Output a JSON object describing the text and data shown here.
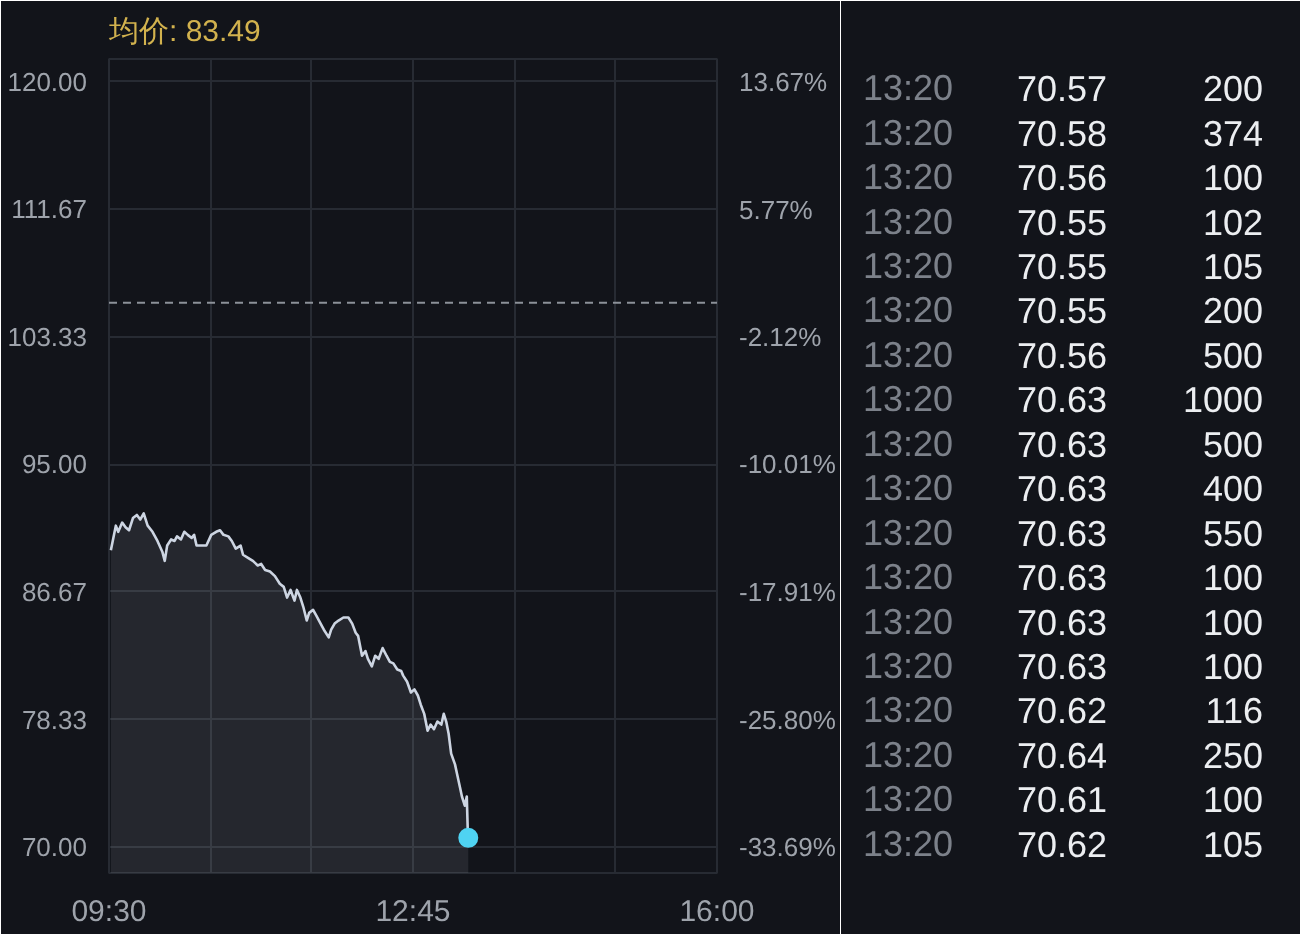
{
  "chart_data": [
    {
      "type": "area",
      "title": "均价: 83.49",
      "xlim": [
        9.5,
        16
      ],
      "xticks": [
        {
          "value": 9.5,
          "label": "09:30"
        },
        {
          "value": 10.5833,
          "label": null
        },
        {
          "value": 11.6667,
          "label": null
        },
        {
          "value": 12.75,
          "label": "12:45"
        },
        {
          "value": 13.8333,
          "label": null
        },
        {
          "value": 14.9167,
          "label": null
        },
        {
          "value": 16,
          "label": "16:00"
        }
      ],
      "ylim": [
        68.3,
        121.5
      ],
      "yticks": [
        {
          "value": 70,
          "label": "70.00"
        },
        78.33,
        86.67,
        {
          "value": 95,
          "label": "95.00"
        },
        103.33,
        111.67,
        {
          "value": 120,
          "label": "120.00"
        }
      ],
      "y2lim": [
        -35.3,
        15.09
      ],
      "y2ticks": [
        {
          "value": -33.69,
          "label": "-33.69%"
        },
        {
          "value": -25.8,
          "label": "-25.80%"
        },
        {
          "value": -17.91,
          "label": "-17.91%"
        },
        {
          "value": -10.01,
          "label": "-10.01%"
        },
        {
          "value": -2.12,
          "label": "-2.12%"
        },
        {
          "value": 5.77,
          "label": "5.77%"
        },
        {
          "value": 13.67,
          "label": "13.67%"
        }
      ],
      "grid": true,
      "ref_lines": [
        {
          "axis": "y",
          "value": 105.57,
          "color": "#8c9199",
          "line_style": "dashed"
        }
      ],
      "series": [
        {
          "type": "area",
          "color": "#cdd5e2",
          "x": [
            9.52,
            9.573,
            9.599,
            9.641,
            9.677,
            9.714,
            9.756,
            9.798,
            9.834,
            9.871,
            9.913,
            9.965,
            10.018,
            10.07,
            10.096,
            10.122,
            10.164,
            10.201,
            10.227,
            10.269,
            10.305,
            10.342,
            10.384,
            10.41,
            10.436,
            10.489,
            10.541,
            10.593,
            10.646,
            10.687,
            10.724,
            10.776,
            10.813,
            10.855,
            10.907,
            10.933,
            10.986,
            11.038,
            11.09,
            11.127,
            11.169,
            11.221,
            11.274,
            11.326,
            11.368,
            11.404,
            11.441,
            11.483,
            11.509,
            11.546,
            11.577,
            11.614,
            11.64,
            11.682,
            11.718,
            11.745,
            11.797,
            11.849,
            11.875,
            11.912,
            11.954,
            12.006,
            12.059,
            12.1,
            12.137,
            12.163,
            12.205,
            12.242,
            12.268,
            12.31,
            12.346,
            12.383,
            12.425,
            12.467,
            12.503,
            12.54,
            12.582,
            12.624,
            12.645,
            12.687,
            12.728,
            12.765,
            12.802,
            12.833,
            12.87,
            12.906,
            12.938,
            12.974,
            13.011,
            13.053,
            13.079,
            13.105,
            13.131,
            13.158,
            13.199,
            13.22,
            13.252,
            13.273,
            13.304,
            13.325,
            13.335,
            13.341
          ],
          "values": [
            89.4,
            91.0,
            90.6,
            91.2,
            90.9,
            90.7,
            91.5,
            91.7,
            91.4,
            91.8,
            91.0,
            90.6,
            90.0,
            89.3,
            88.7,
            89.7,
            90.1,
            90.0,
            90.3,
            90.1,
            90.6,
            90.4,
            90.2,
            90.4,
            89.7,
            89.7,
            89.7,
            90.4,
            90.6,
            90.7,
            90.4,
            90.3,
            90.0,
            89.5,
            89.7,
            89.1,
            88.9,
            88.7,
            88.4,
            88.5,
            88.1,
            88.0,
            87.7,
            87.2,
            87.0,
            86.3,
            86.8,
            86.1,
            86.8,
            86.3,
            85.7,
            84.8,
            85.3,
            85.5,
            85.1,
            84.8,
            84.2,
            83.7,
            84.2,
            84.6,
            84.8,
            85.0,
            85.0,
            84.6,
            84.0,
            83.8,
            82.5,
            82.8,
            82.3,
            81.8,
            82.5,
            82.3,
            83.0,
            82.5,
            82.1,
            82.0,
            81.6,
            81.5,
            81.2,
            80.8,
            80.1,
            80.3,
            79.9,
            79.3,
            78.7,
            77.6,
            78.0,
            77.7,
            78.2,
            78.0,
            78.7,
            78.2,
            77.4,
            76.1,
            75.4,
            74.8,
            73.9,
            73.3,
            72.7,
            73.3,
            71.2,
            70.6
          ]
        },
        {
          "type": "scatter",
          "marker": "circle",
          "color": "#4fd3f2",
          "x": [
            13.341
          ],
          "values": [
            70.6
          ]
        }
      ]
    },
    {
      "type": "other",
      "annotations": [
        "13:20",
        "70.57",
        "200",
        "13:20",
        "70.58",
        "374",
        "13:20",
        "70.56",
        "100",
        "13:20",
        "70.55",
        "102",
        "13:20",
        "70.55",
        "105",
        "13:20",
        "70.55",
        "200",
        "13:20",
        "70.56",
        "500",
        "13:20",
        "70.63",
        "1000",
        "13:20",
        "70.63",
        "500",
        "13:20",
        "70.63",
        "400",
        "13:20",
        "70.63",
        "550",
        "13:20",
        "70.63",
        "100",
        "13:20",
        "70.63",
        "100",
        "13:20",
        "70.63",
        "100",
        "13:20",
        "70.62",
        "116",
        "13:20",
        "70.64",
        "250",
        "13:20",
        "70.61",
        "100",
        "13:20",
        "70.62",
        "105"
      ]
    }
  ]
}
